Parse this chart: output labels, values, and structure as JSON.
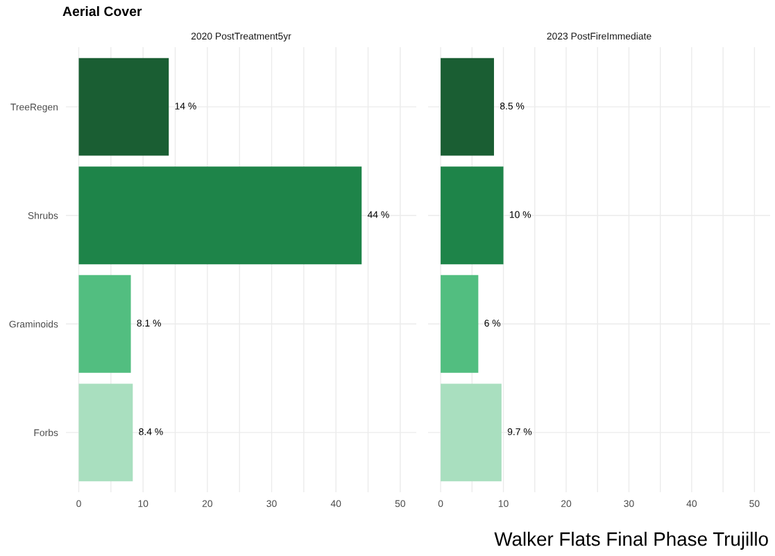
{
  "chart_data": [
    {
      "type": "bar",
      "orientation": "horizontal",
      "title": "Aerial Cover",
      "subtitle": "2020 PostTreatment5yr",
      "categories": [
        "TreeRegen",
        "Shrubs",
        "Graminoids",
        "Forbs"
      ],
      "values": [
        14,
        44,
        8.1,
        8.4
      ],
      "value_labels": [
        "14 %",
        "44 %",
        "8.1 %",
        "8.4 %"
      ],
      "colors": [
        "#1a5e33",
        "#1e8449",
        "#52be80",
        "#a9dfbf"
      ],
      "xlim": [
        -2,
        52.5
      ],
      "xticks": [
        0,
        {
          "value": 5,
          "label": null
        },
        10,
        {
          "value": 15,
          "label": null
        },
        20,
        {
          "value": 25,
          "label": null
        },
        30,
        {
          "value": 35,
          "label": null
        },
        40,
        {
          "value": 45,
          "label": null
        },
        50
      ],
      "grid": true
    },
    {
      "type": "bar",
      "orientation": "horizontal",
      "subtitle": "2023 PostFireImmediate",
      "categories": [
        "TreeRegen",
        "Shrubs",
        "Graminoids",
        "Forbs"
      ],
      "values": [
        8.5,
        10,
        6,
        9.7
      ],
      "value_labels": [
        "8.5 %",
        "10 %",
        "6 %",
        "9.7 %"
      ],
      "colors": [
        "#1a5e33",
        "#1e8449",
        "#52be80",
        "#a9dfbf"
      ],
      "xlim": [
        -2,
        52.5
      ],
      "xticks": [
        0,
        {
          "value": 5,
          "label": null
        },
        10,
        {
          "value": 15,
          "label": null
        },
        20,
        {
          "value": 25,
          "label": null
        },
        30,
        {
          "value": 35,
          "label": null
        },
        40,
        {
          "value": 45,
          "label": null
        },
        50
      ],
      "grid": true,
      "tick_labels": "x",
      "annotations": [
        "Walker Flats Final Phase Trujillo"
      ]
    }
  ]
}
